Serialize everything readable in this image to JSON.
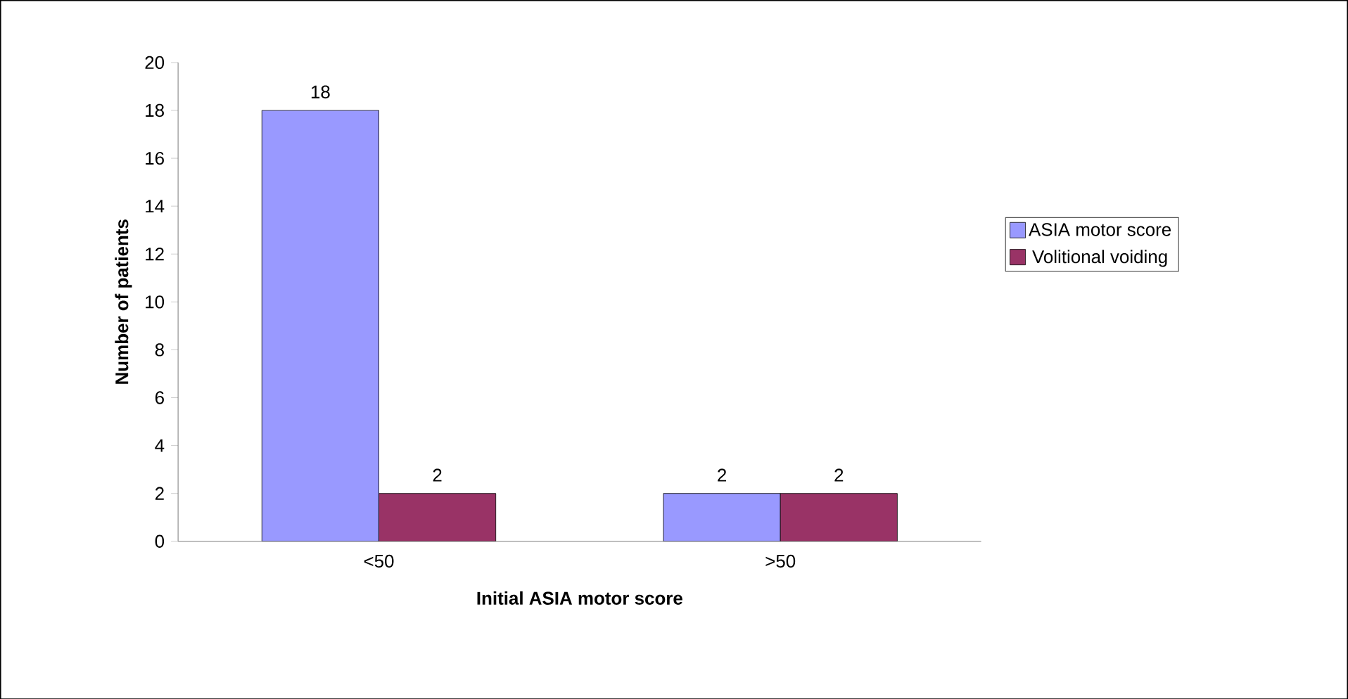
{
  "chart_data": {
    "type": "bar",
    "xlabel": "Initial ASIA motor score",
    "ylabel": "Number of patients",
    "categories": [
      "<50",
      ">50"
    ],
    "series": [
      {
        "name": "ASIA motor score",
        "color": "#9999ff",
        "values": [
          18,
          2
        ]
      },
      {
        "name": "Volitional voiding",
        "color": "#993366",
        "values": [
          2,
          2
        ]
      }
    ],
    "ylim": [
      0,
      20
    ],
    "yticks": [
      0,
      2,
      4,
      6,
      8,
      10,
      12,
      14,
      16,
      18,
      20
    ],
    "data_labels": true,
    "legend": "right",
    "grid": false
  }
}
